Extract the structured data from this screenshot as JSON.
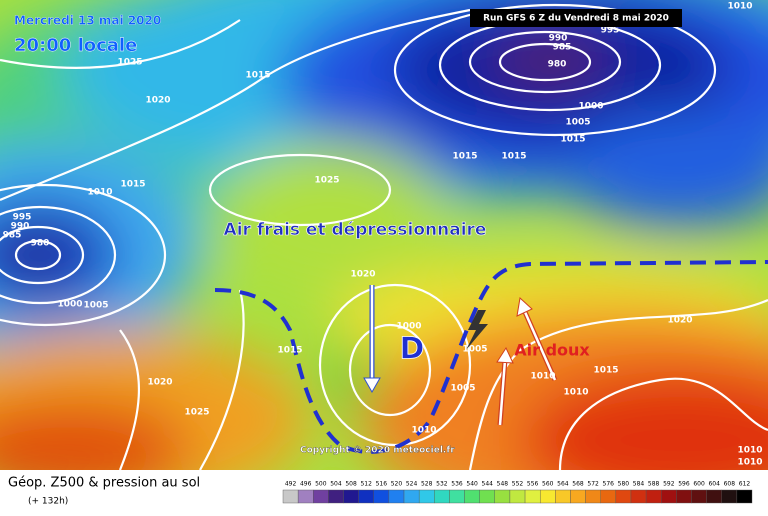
{
  "header": {
    "date": "Mercredi 13 mai 2020",
    "time": "20:00 locale",
    "run": "Run GFS 6 Z du Vendredi 8 mai 2020"
  },
  "annotations": {
    "cold_air": "Air frais et dépressionnaire",
    "warm_air": "Air doux",
    "low": "D"
  },
  "isobar_labels": [
    1025,
    1015,
    1020,
    1010,
    1015,
    995,
    990,
    985,
    980,
    1000,
    1005,
    1025,
    1015,
    1015,
    995,
    990,
    985,
    980,
    1000,
    1005,
    1015,
    1010,
    1020,
    1000,
    1005,
    1005,
    1015,
    1020,
    1025,
    1010,
    1010,
    1010,
    1015,
    1010,
    1010,
    1020
  ],
  "copyright": "Copyright © 2020 meteociel.fr",
  "footer": {
    "title": "Géop. Z500 & pression au sol",
    "lead": "(+ 132h)"
  },
  "colorbar": [
    492,
    496,
    500,
    504,
    508,
    512,
    516,
    520,
    524,
    528,
    532,
    536,
    540,
    544,
    548,
    552,
    556,
    560,
    564,
    568,
    572,
    576,
    580,
    584,
    588,
    592,
    596,
    600,
    604,
    608,
    612
  ]
}
